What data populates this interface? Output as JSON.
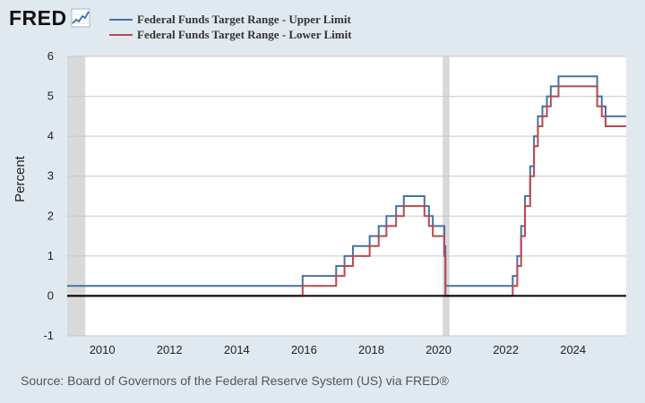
{
  "header": {
    "logo_text": "FRED",
    "logo_mark": "fred-line-chart-icon"
  },
  "colors": {
    "background": "#e1e9f0",
    "plot_background": "#ffffff",
    "recession_shade": "#d9d9d9",
    "upper": "#4572a7",
    "lower": "#b84a4f",
    "zero_line": "#000000",
    "grid": "#c8c8c8"
  },
  "source_text": "Source: Board of Governors of the Federal Reserve System (US) via FRED®",
  "chart_data": {
    "type": "line",
    "title": "",
    "xlabel": "",
    "ylabel": "Percent",
    "xlim": [
      "2008-12-16",
      "2025-07-31"
    ],
    "ylim": [
      -1,
      6
    ],
    "x_ticks": [
      "2010",
      "2012",
      "2014",
      "2016",
      "2018",
      "2020",
      "2022",
      "2024"
    ],
    "y_ticks": [
      "-1",
      "0",
      "1",
      "2",
      "3",
      "4",
      "5",
      "6"
    ],
    "grid": true,
    "legend_position": "top-left",
    "recessions": [
      {
        "start": "2008-12-16",
        "end": "2009-06-30"
      },
      {
        "start": "2020-02-15",
        "end": "2020-04-30"
      }
    ],
    "series": [
      {
        "name": "Federal Funds Target Range - Upper Limit",
        "step": true,
        "points": [
          [
            "2008-12-16",
            0.25
          ],
          [
            "2015-12-17",
            0.5
          ],
          [
            "2016-12-15",
            0.75
          ],
          [
            "2017-03-16",
            1.0
          ],
          [
            "2017-06-15",
            1.25
          ],
          [
            "2017-12-14",
            1.5
          ],
          [
            "2018-03-22",
            1.75
          ],
          [
            "2018-06-14",
            2.0
          ],
          [
            "2018-09-27",
            2.25
          ],
          [
            "2018-12-20",
            2.5
          ],
          [
            "2019-08-01",
            2.25
          ],
          [
            "2019-09-19",
            2.0
          ],
          [
            "2019-10-31",
            1.75
          ],
          [
            "2020-03-04",
            1.25
          ],
          [
            "2020-03-16",
            0.25
          ],
          [
            "2022-03-17",
            0.5
          ],
          [
            "2022-05-05",
            1.0
          ],
          [
            "2022-06-16",
            1.75
          ],
          [
            "2022-07-28",
            2.5
          ],
          [
            "2022-09-22",
            3.25
          ],
          [
            "2022-11-03",
            4.0
          ],
          [
            "2022-12-15",
            4.5
          ],
          [
            "2023-02-02",
            4.75
          ],
          [
            "2023-03-23",
            5.0
          ],
          [
            "2023-05-04",
            5.25
          ],
          [
            "2023-07-27",
            5.5
          ],
          [
            "2024-09-19",
            5.0
          ],
          [
            "2024-11-08",
            4.75
          ],
          [
            "2024-12-19",
            4.5
          ],
          [
            "2025-07-31",
            4.5
          ]
        ]
      },
      {
        "name": "Federal Funds Target Range - Lower Limit",
        "step": true,
        "points": [
          [
            "2008-12-16",
            0.0
          ],
          [
            "2015-12-17",
            0.25
          ],
          [
            "2016-12-15",
            0.5
          ],
          [
            "2017-03-16",
            0.75
          ],
          [
            "2017-06-15",
            1.0
          ],
          [
            "2017-12-14",
            1.25
          ],
          [
            "2018-03-22",
            1.5
          ],
          [
            "2018-06-14",
            1.75
          ],
          [
            "2018-09-27",
            2.0
          ],
          [
            "2018-12-20",
            2.25
          ],
          [
            "2019-08-01",
            2.0
          ],
          [
            "2019-09-19",
            1.75
          ],
          [
            "2019-10-31",
            1.5
          ],
          [
            "2020-03-04",
            1.0
          ],
          [
            "2020-03-16",
            0.0
          ],
          [
            "2022-03-17",
            0.25
          ],
          [
            "2022-05-05",
            0.75
          ],
          [
            "2022-06-16",
            1.5
          ],
          [
            "2022-07-28",
            2.25
          ],
          [
            "2022-09-22",
            3.0
          ],
          [
            "2022-11-03",
            3.75
          ],
          [
            "2022-12-15",
            4.25
          ],
          [
            "2023-02-02",
            4.5
          ],
          [
            "2023-03-23",
            4.75
          ],
          [
            "2023-05-04",
            5.0
          ],
          [
            "2023-07-27",
            5.25
          ],
          [
            "2024-09-19",
            4.75
          ],
          [
            "2024-11-08",
            4.5
          ],
          [
            "2024-12-19",
            4.25
          ],
          [
            "2025-07-31",
            4.25
          ]
        ]
      }
    ]
  }
}
